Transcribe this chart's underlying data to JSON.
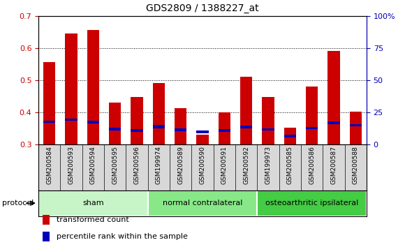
{
  "title": "GDS2809 / 1388227_at",
  "samples": [
    "GSM200584",
    "GSM200593",
    "GSM200594",
    "GSM200595",
    "GSM200596",
    "GSM199974",
    "GSM200589",
    "GSM200590",
    "GSM200591",
    "GSM200592",
    "GSM199973",
    "GSM200585",
    "GSM200586",
    "GSM200587",
    "GSM200588"
  ],
  "red_values": [
    0.557,
    0.645,
    0.657,
    0.43,
    0.447,
    0.492,
    0.414,
    0.33,
    0.4,
    0.51,
    0.447,
    0.352,
    0.48,
    0.592,
    0.402
  ],
  "blue_bottom": [
    0.368,
    0.373,
    0.365,
    0.343,
    0.34,
    0.35,
    0.342,
    0.335,
    0.34,
    0.35,
    0.343,
    0.323,
    0.348,
    0.363,
    0.357
  ],
  "blue_top": [
    0.375,
    0.381,
    0.373,
    0.352,
    0.349,
    0.36,
    0.351,
    0.343,
    0.349,
    0.358,
    0.35,
    0.33,
    0.355,
    0.371,
    0.364
  ],
  "groups": [
    {
      "label": "sham",
      "start": 0,
      "end": 5,
      "color": "#c8f5c8"
    },
    {
      "label": "normal contralateral",
      "start": 5,
      "end": 10,
      "color": "#88e888"
    },
    {
      "label": "osteoarthritic ipsilateral",
      "start": 10,
      "end": 15,
      "color": "#44cc44"
    }
  ],
  "ylim_left": [
    0.3,
    0.7
  ],
  "ylim_right": [
    0,
    100
  ],
  "yticks_left": [
    0.3,
    0.4,
    0.5,
    0.6,
    0.7
  ],
  "yticks_right": [
    0,
    25,
    50,
    75,
    100
  ],
  "ytick_labels_right": [
    "0",
    "25",
    "50",
    "75",
    "100%"
  ],
  "bar_color_red": "#cc0000",
  "bar_color_blue": "#0000bb",
  "left_axis_color": "#cc0000",
  "right_axis_color": "#0000bb",
  "bar_width": 0.55,
  "protocol_label": "protocol",
  "legend_red": "transformed count",
  "legend_blue": "percentile rank within the sample",
  "sample_label_bg": "#d8d8d8",
  "title_fontsize": 10,
  "tick_fontsize": 8,
  "sample_fontsize": 6.5,
  "group_fontsize": 8,
  "legend_fontsize": 8
}
